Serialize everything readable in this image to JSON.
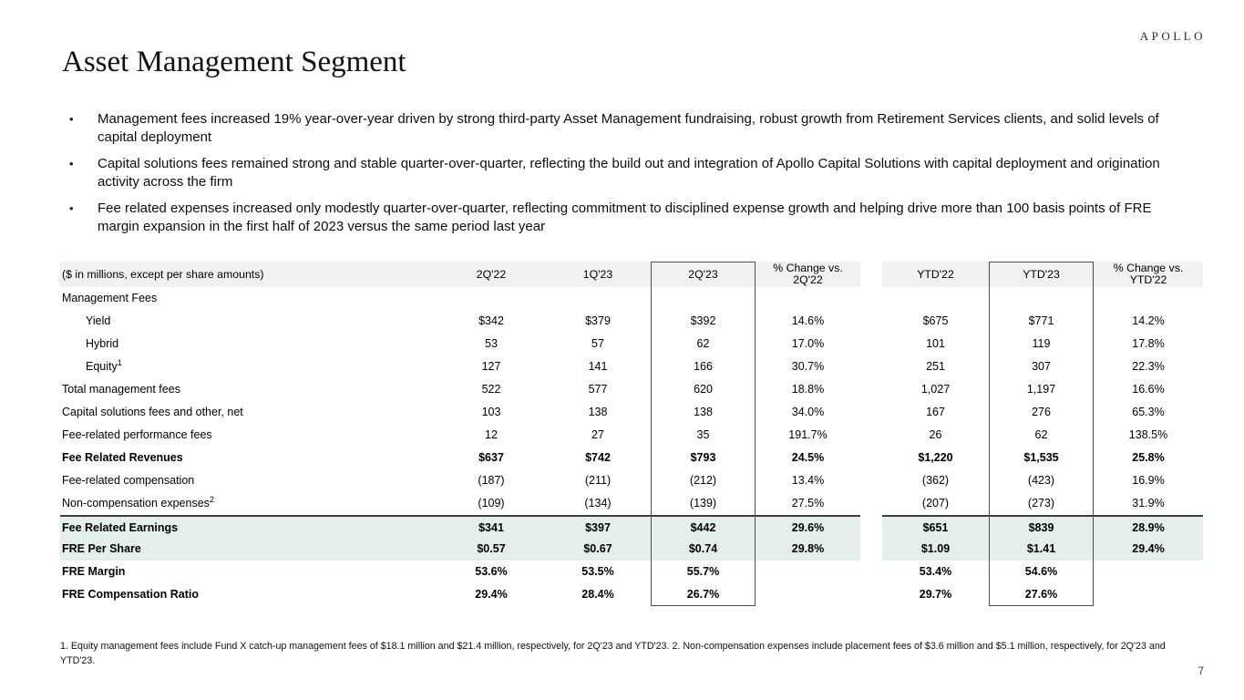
{
  "brand": {
    "logo_text": "APOLLO"
  },
  "page": {
    "title": "Asset Management Segment",
    "page_number": "7"
  },
  "bullets": [
    "Management fees increased 19% year-over-year driven by strong third-party Asset Management fundraising, robust growth from Retirement Services clients, and solid levels of capital deployment",
    "Capital solutions fees remained strong and stable quarter-over-quarter, reflecting the build out and integration of Apollo Capital Solutions with capital deployment and origination activity across the firm",
    "Fee related expenses increased only modestly quarter-over-quarter, reflecting commitment to disciplined expense growth and helping drive more than 100 basis points of FRE margin expansion in the first half of 2023 versus the same period last year"
  ],
  "table": {
    "note": "($ in millions, except per share amounts)",
    "columns": [
      "2Q'22",
      "1Q'23",
      "2Q'23",
      "% Change vs.\n2Q'22",
      "YTD'22",
      "YTD'23",
      "% Change vs.\nYTD'22"
    ],
    "rows": [
      {
        "label": "Management Fees",
        "values": [
          "",
          "",
          "",
          "",
          "",
          "",
          ""
        ]
      },
      {
        "label": "Yield",
        "indent": true,
        "values": [
          "$342",
          "$379",
          "$392",
          "14.6%",
          "$675",
          "$771",
          "14.2%"
        ]
      },
      {
        "label": "Hybrid",
        "indent": true,
        "values": [
          "53",
          "57",
          "62",
          "17.0%",
          "101",
          "119",
          "17.8%"
        ]
      },
      {
        "label": "Equity",
        "sup": "1",
        "indent": true,
        "values": [
          "127",
          "141",
          "166",
          "30.7%",
          "251",
          "307",
          "22.3%"
        ]
      },
      {
        "label": "Total management fees",
        "values": [
          "522",
          "577",
          "620",
          "18.8%",
          "1,027",
          "1,197",
          "16.6%"
        ]
      },
      {
        "label": "Capital solutions fees and other, net",
        "values": [
          "103",
          "138",
          "138",
          "34.0%",
          "167",
          "276",
          "65.3%"
        ]
      },
      {
        "label": "Fee-related performance fees",
        "values": [
          "12",
          "27",
          "35",
          "191.7%",
          "26",
          "62",
          "138.5%"
        ]
      },
      {
        "label": "Fee Related Revenues",
        "bold": true,
        "values": [
          "$637",
          "$742",
          "$793",
          "24.5%",
          "$1,220",
          "$1,535",
          "25.8%"
        ]
      },
      {
        "label": "Fee-related compensation",
        "values": [
          "(187)",
          "(211)",
          "(212)",
          "13.4%",
          "(362)",
          "(423)",
          "16.9%"
        ]
      },
      {
        "label": "Non-compensation expenses",
        "sup": "2",
        "values": [
          "(109)",
          "(134)",
          "(139)",
          "27.5%",
          "(207)",
          "(273)",
          "31.9%"
        ]
      },
      {
        "label": "Fee Related Earnings",
        "bold": true,
        "highlight": true,
        "top_border": true,
        "values": [
          "$341",
          "$397",
          "$442",
          "29.6%",
          "$651",
          "$839",
          "28.9%"
        ]
      },
      {
        "label": "FRE Per Share",
        "bold": true,
        "highlight": true,
        "values": [
          "$0.57",
          "$0.67",
          "$0.74",
          "29.8%",
          "$1.09",
          "$1.41",
          "29.4%"
        ]
      },
      {
        "label": "FRE Margin",
        "bold": true,
        "values": [
          "53.6%",
          "53.5%",
          "55.7%",
          "",
          "53.4%",
          "54.6%",
          ""
        ]
      },
      {
        "label": "FRE Compensation Ratio",
        "bold": true,
        "values": [
          "29.4%",
          "28.4%",
          "26.7%",
          "",
          "29.7%",
          "27.6%",
          ""
        ]
      }
    ]
  },
  "footnote": "1. Equity management fees include Fund X catch-up management fees of $18.1 million and $21.4 million, respectively, for 2Q'23 and YTD'23. 2. Non-compensation expenses include placement fees of $3.6 million and $5.1 million, respectively, for 2Q'23 and YTD'23.",
  "colors": {
    "highlight_row": "#e4efea",
    "header_bg": "#f1f1f0",
    "box_border": "#4d4d4f",
    "accent_border": "#3c3c3c"
  }
}
